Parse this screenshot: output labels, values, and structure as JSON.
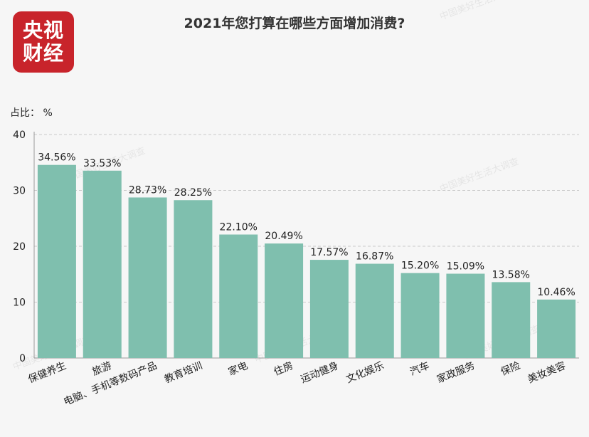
{
  "logo": {
    "line1": "央视",
    "line2": "财经"
  },
  "watermark": "中国美好生活大调查",
  "colors": {
    "bar": "#7fbfae",
    "logo_bg": "#c8242b",
    "grid": "#c9c9c9"
  },
  "chart_data": {
    "type": "bar",
    "title": "2021年您打算在哪些方面增加消费?",
    "ylabel": "占比：  %",
    "ylim": [
      0,
      40
    ],
    "yticks": [
      0,
      10,
      20,
      30,
      40
    ],
    "grid": true,
    "categories": [
      "保健养生",
      "旅游",
      "电脑、手机等数码产品",
      "教育培训",
      "家电",
      "住房",
      "运动健身",
      "文化娱乐",
      "汽车",
      "家政服务",
      "保险",
      "美妆美容"
    ],
    "values": [
      34.56,
      33.53,
      28.73,
      28.25,
      22.1,
      20.49,
      17.57,
      16.87,
      15.2,
      15.09,
      13.58,
      10.46
    ],
    "labels": [
      "34.56%",
      "33.53%",
      "28.73%",
      "28.25%",
      "22.10%",
      "20.49%",
      "17.57%",
      "16.87%",
      "15.20%",
      "15.09%",
      "13.58%",
      "10.46%"
    ]
  }
}
